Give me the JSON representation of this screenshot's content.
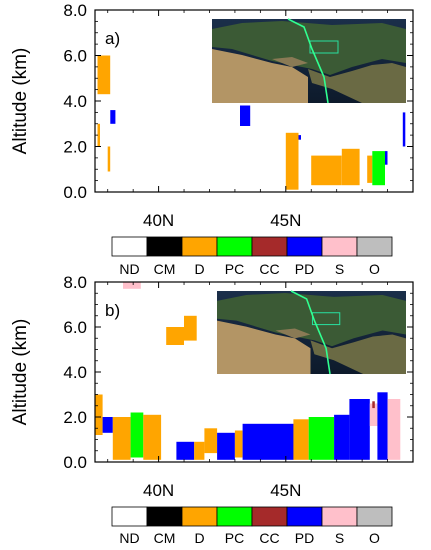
{
  "legend": {
    "categories": [
      {
        "code": "ND",
        "color": "#ffffff"
      },
      {
        "code": "CM",
        "color": "#000000"
      },
      {
        "code": "D",
        "color": "#ffa500"
      },
      {
        "code": "PC",
        "color": "#00ff00"
      },
      {
        "code": "CC",
        "color": "#a52a2a"
      },
      {
        "code": "PD",
        "color": "#0000ff"
      },
      {
        "code": "S",
        "color": "#ffc0cb"
      },
      {
        "code": "O",
        "color": "#bebebe"
      }
    ]
  },
  "chart_data": [
    {
      "type": "heatmap",
      "panel_label": "a)",
      "ylabel": "Altitude (km)",
      "ylim": [
        0,
        8
      ],
      "y_ticks": [
        "0.0",
        "2.0",
        "4.0",
        "6.0",
        "8.0"
      ],
      "x_tick_labels": [
        "40N",
        "45N"
      ],
      "x_tick_values": [
        40,
        45
      ],
      "xlim": [
        37.5,
        50.0
      ],
      "inset": "satellite map with track",
      "blocks": [
        {
          "cat": "D",
          "x0": 37.6,
          "x1": 38.1,
          "y0": 4.3,
          "y1": 6.0
        },
        {
          "cat": "D",
          "x0": 37.6,
          "x1": 37.7,
          "y0": 2.0,
          "y1": 3.0
        },
        {
          "cat": "D",
          "x0": 38.0,
          "x1": 38.1,
          "y0": 0.9,
          "y1": 2.0
        },
        {
          "cat": "PD",
          "x0": 38.1,
          "x1": 38.3,
          "y0": 3.0,
          "y1": 3.6
        },
        {
          "cat": "PD",
          "x0": 43.2,
          "x1": 43.6,
          "y0": 2.9,
          "y1": 3.8
        },
        {
          "cat": "D",
          "x0": 45.0,
          "x1": 45.5,
          "y0": 0.1,
          "y1": 2.6
        },
        {
          "cat": "PD",
          "x0": 45.5,
          "x1": 45.6,
          "y0": 2.3,
          "y1": 2.5
        },
        {
          "cat": "D",
          "x0": 46.0,
          "x1": 47.2,
          "y0": 0.3,
          "y1": 1.6
        },
        {
          "cat": "D",
          "x0": 47.2,
          "x1": 47.9,
          "y0": 0.3,
          "y1": 1.9
        },
        {
          "cat": "D",
          "x0": 48.2,
          "x1": 48.4,
          "y0": 0.4,
          "y1": 1.6
        },
        {
          "cat": "PC",
          "x0": 48.4,
          "x1": 48.9,
          "y0": 0.3,
          "y1": 1.8
        },
        {
          "cat": "PD",
          "x0": 48.9,
          "x1": 49.0,
          "y0": 1.2,
          "y1": 1.8
        },
        {
          "cat": "PD",
          "x0": 49.6,
          "x1": 49.7,
          "y0": 2.0,
          "y1": 3.5
        }
      ]
    },
    {
      "type": "heatmap",
      "panel_label": "b)",
      "ylabel": "Altitude (km)",
      "ylim": [
        0,
        8
      ],
      "y_ticks": [
        "0.0",
        "2.0",
        "4.0",
        "6.0",
        "8.0"
      ],
      "x_tick_labels": [
        "40N",
        "45N"
      ],
      "x_tick_values": [
        40,
        45
      ],
      "xlim": [
        37.5,
        50.0
      ],
      "inset": "satellite map with track",
      "blocks": [
        {
          "cat": "S",
          "x0": 38.6,
          "x1": 39.3,
          "y0": 7.7,
          "y1": 8.0
        },
        {
          "cat": "D",
          "x0": 40.3,
          "x1": 41.0,
          "y0": 5.2,
          "y1": 6.0
        },
        {
          "cat": "D",
          "x0": 41.0,
          "x1": 41.5,
          "y0": 5.4,
          "y1": 6.5
        },
        {
          "cat": "D",
          "x0": 37.5,
          "x1": 37.8,
          "y0": 1.2,
          "y1": 3.0
        },
        {
          "cat": "PD",
          "x0": 37.8,
          "x1": 38.2,
          "y0": 1.3,
          "y1": 2.0
        },
        {
          "cat": "D",
          "x0": 38.2,
          "x1": 38.9,
          "y0": 0.1,
          "y1": 2.0
        },
        {
          "cat": "PC",
          "x0": 38.9,
          "x1": 39.4,
          "y0": 0.2,
          "y1": 2.2
        },
        {
          "cat": "D",
          "x0": 39.4,
          "x1": 40.1,
          "y0": 0.1,
          "y1": 2.1
        },
        {
          "cat": "PD",
          "x0": 40.7,
          "x1": 41.4,
          "y0": 0.1,
          "y1": 0.9
        },
        {
          "cat": "D",
          "x0": 41.4,
          "x1": 41.8,
          "y0": 0.1,
          "y1": 0.9
        },
        {
          "cat": "D",
          "x0": 41.8,
          "x1": 42.3,
          "y0": 0.4,
          "y1": 1.5
        },
        {
          "cat": "PD",
          "x0": 42.3,
          "x1": 43.0,
          "y0": 0.1,
          "y1": 1.3
        },
        {
          "cat": "D",
          "x0": 43.0,
          "x1": 43.3,
          "y0": 0.2,
          "y1": 1.4
        },
        {
          "cat": "PD",
          "x0": 43.3,
          "x1": 45.3,
          "y0": 0.1,
          "y1": 1.7
        },
        {
          "cat": "D",
          "x0": 45.3,
          "x1": 45.9,
          "y0": 0.1,
          "y1": 1.9
        },
        {
          "cat": "PC",
          "x0": 45.9,
          "x1": 46.9,
          "y0": 0.1,
          "y1": 2.0
        },
        {
          "cat": "PD",
          "x0": 46.9,
          "x1": 47.5,
          "y0": 0.1,
          "y1": 2.1
        },
        {
          "cat": "PD",
          "x0": 47.5,
          "x1": 48.3,
          "y0": 0.1,
          "y1": 2.8
        },
        {
          "cat": "S",
          "x0": 48.3,
          "x1": 48.6,
          "y0": 1.6,
          "y1": 2.6
        },
        {
          "cat": "PD",
          "x0": 48.6,
          "x1": 49.0,
          "y0": 0.1,
          "y1": 3.1
        },
        {
          "cat": "S",
          "x0": 49.0,
          "x1": 49.5,
          "y0": 0.1,
          "y1": 2.8
        },
        {
          "cat": "CC",
          "x0": 48.4,
          "x1": 48.5,
          "y0": 2.4,
          "y1": 2.7
        }
      ]
    }
  ]
}
